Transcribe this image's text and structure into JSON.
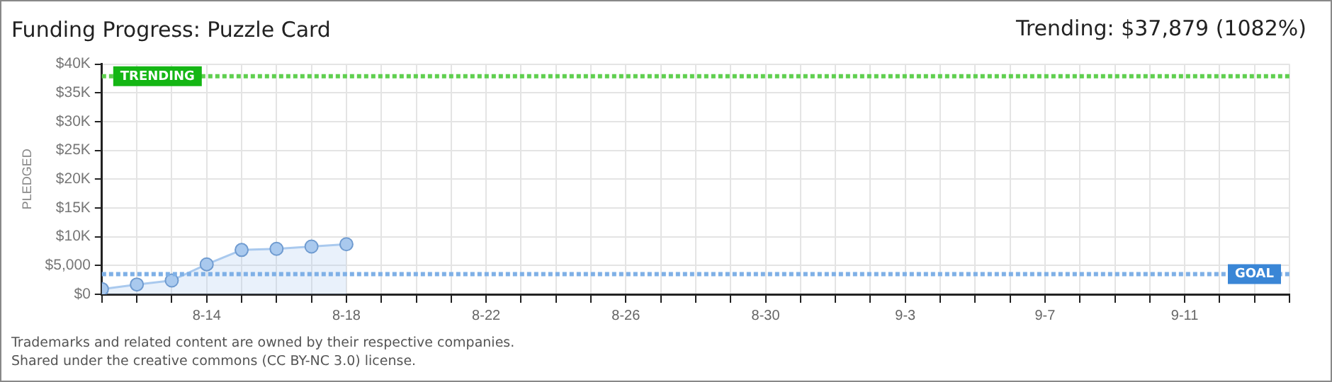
{
  "chart_data": {
    "type": "area",
    "title": "Funding Progress: Puzzle Card",
    "ylabel": "PLEDGED",
    "annotations": [
      "Trending: $37,879 (1082%)",
      "Trademarks and related content are owned by their respective companies.",
      "Shared under the creative commons (CC BY-NC 3.0) license."
    ],
    "x": [
      "--08-11",
      "--08-12",
      "--08-13",
      "--08-14",
      "--08-15",
      "--08-16",
      "--08-17",
      "--08-18"
    ],
    "series": [
      {
        "color": "#a9c9ee",
        "values": [
          900,
          1700,
          2400,
          5200,
          7700,
          7900,
          8300,
          8700
        ]
      }
    ],
    "xlim": [
      "--08-11",
      "--09-14"
    ],
    "xticks": [
      {
        "value": "--08-11",
        "label": null
      },
      {
        "value": "--08-12",
        "label": null
      },
      {
        "value": "--08-13",
        "label": null
      },
      {
        "value": "--08-14",
        "label": "8-14"
      },
      {
        "value": "--08-15",
        "label": null
      },
      {
        "value": "--08-16",
        "label": null
      },
      {
        "value": "--08-17",
        "label": null
      },
      {
        "value": "--08-18",
        "label": "8-18"
      },
      {
        "value": "--08-19",
        "label": null
      },
      {
        "value": "--08-20",
        "label": null
      },
      {
        "value": "--08-21",
        "label": null
      },
      {
        "value": "--08-22",
        "label": "8-22"
      },
      {
        "value": "--08-23",
        "label": null
      },
      {
        "value": "--08-24",
        "label": null
      },
      {
        "value": "--08-25",
        "label": null
      },
      {
        "value": "--08-26",
        "label": "8-26"
      },
      {
        "value": "--08-27",
        "label": null
      },
      {
        "value": "--08-28",
        "label": null
      },
      {
        "value": "--08-29",
        "label": null
      },
      {
        "value": "--08-30",
        "label": "8-30"
      },
      {
        "value": "--08-31",
        "label": null
      },
      {
        "value": "--09-01",
        "label": null
      },
      {
        "value": "--09-02",
        "label": null
      },
      {
        "value": "--09-03",
        "label": "9-3"
      },
      {
        "value": "--09-04",
        "label": null
      },
      {
        "value": "--09-05",
        "label": null
      },
      {
        "value": "--09-06",
        "label": null
      },
      {
        "value": "--09-07",
        "label": "9-7"
      },
      {
        "value": "--09-08",
        "label": null
      },
      {
        "value": "--09-09",
        "label": null
      },
      {
        "value": "--09-10",
        "label": null
      },
      {
        "value": "--09-11",
        "label": "9-11"
      },
      {
        "value": "--09-12",
        "label": null
      },
      {
        "value": "--09-13",
        "label": null
      },
      {
        "value": "--09-14",
        "label": null
      }
    ],
    "ylim": [
      0,
      40000
    ],
    "yticks": [
      {
        "value": 0,
        "label": "$0"
      },
      {
        "value": 5000,
        "label": "$5,000"
      },
      {
        "value": 10000,
        "label": "$10K"
      },
      {
        "value": 15000,
        "label": "$15K"
      },
      {
        "value": 20000,
        "label": "$20K"
      },
      {
        "value": 25000,
        "label": "$25K"
      },
      {
        "value": 30000,
        "label": "$30K"
      },
      {
        "value": 35000,
        "label": "$35K"
      },
      {
        "value": 40000,
        "label": "$40K"
      }
    ],
    "ref_lines": [
      {
        "axis": "y",
        "value": 37879,
        "label": "TRENDING",
        "color": "#5fcf4f"
      },
      {
        "axis": "y",
        "value": 3500,
        "label": "GOAL",
        "color": "#7fb0e6"
      }
    ],
    "grid": true,
    "legend": false,
    "marker": "circle",
    "line_style": "solid"
  }
}
